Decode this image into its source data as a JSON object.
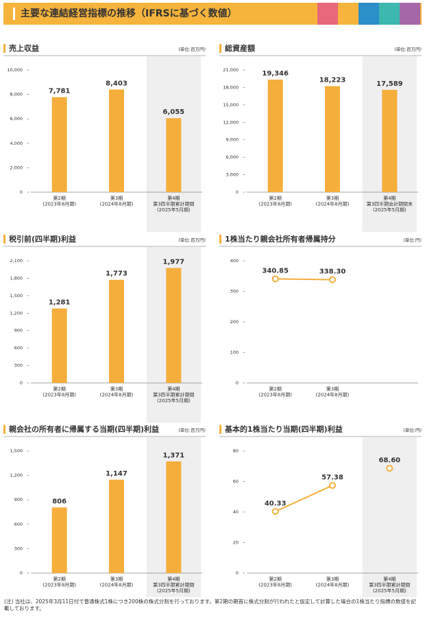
{
  "header": {
    "title": "主要な連結経営指標の推移（IFRSに基づく数値）"
  },
  "chart_data": [
    {
      "type": "bar",
      "title": "売上収益",
      "unit": "(単位:百万円)",
      "color": "#f5ae3c",
      "shaded_category": 2,
      "categories": [
        [
          "第2期",
          "(2023年8月期)"
        ],
        [
          "第3期",
          "(2024年8月期)"
        ],
        [
          "第4期",
          "第3四半期累計期間",
          "(2025年5月期)"
        ]
      ],
      "values": [
        7781,
        8403,
        6055
      ],
      "value_labels": [
        "7,781",
        "8,403",
        "6,055"
      ],
      "ylim": [
        0,
        10000
      ],
      "yticks": [
        0,
        {
          "value": 2000,
          "label": "2,000"
        },
        {
          "value": 4000,
          "label": "4,000"
        },
        {
          "value": 6000,
          "label": "6,000"
        },
        {
          "value": 8000,
          "label": "8,000"
        },
        {
          "value": 10000,
          "label": "10,000"
        }
      ]
    },
    {
      "type": "bar",
      "title": "総資産額",
      "unit": "(単位:百万円)",
      "color": "#f5ae3c",
      "shaded_category": 2,
      "categories": [
        [
          "第2期",
          "(2023年8月期)"
        ],
        [
          "第3期",
          "(2024年8月期)"
        ],
        [
          "第4期",
          "第3四半期会計期間末",
          "(2025年5月期)"
        ]
      ],
      "values": [
        19346,
        18223,
        17589
      ],
      "value_labels": [
        "19,346",
        "18,223",
        "17,589"
      ],
      "ylim": [
        0,
        21000
      ],
      "yticks": [
        0,
        {
          "value": 3000,
          "label": "3,000"
        },
        {
          "value": 6000,
          "label": "6,000"
        },
        {
          "value": 9000,
          "label": "9,000"
        },
        {
          "value": 12000,
          "label": "12,000"
        },
        {
          "value": 15000,
          "label": "15,000"
        },
        {
          "value": 18000,
          "label": "18,000"
        },
        {
          "value": 21000,
          "label": "21,000"
        }
      ]
    },
    {
      "type": "bar",
      "title": "税引前(四半期)利益",
      "unit": "(単位:百万円)",
      "color": "#f5ae3c",
      "shaded_category": 2,
      "categories": [
        [
          "第2期",
          "(2023年8月期)"
        ],
        [
          "第3期",
          "(2024年8月期)"
        ],
        [
          "第4期",
          "第3四半期累計期間",
          "(2025年5月期)"
        ]
      ],
      "values": [
        1281,
        1773,
        1977
      ],
      "value_labels": [
        "1,281",
        "1,773",
        "1,977"
      ],
      "ylim": [
        0,
        2100
      ],
      "yticks": [
        0,
        300,
        600,
        900,
        {
          "value": 1200,
          "label": "1,200"
        },
        {
          "value": 1500,
          "label": "1,500"
        },
        {
          "value": 1800,
          "label": "1,800"
        },
        {
          "value": 2100,
          "label": "2,100"
        }
      ]
    },
    {
      "type": "line",
      "title": "1株当たり親会社所有者帰属持分",
      "unit": "(単位:円)",
      "categories": [
        [
          "第2期",
          "(2023年8月期)"
        ],
        [
          "第3期",
          "(2024年8月期)"
        ]
      ],
      "series": [
        {
          "color": "#f5ae3c",
          "values": [
            340.85,
            338.3
          ],
          "value_labels": [
            "340.85",
            "338.30"
          ]
        }
      ],
      "ylim": [
        0,
        400
      ],
      "yticks": [
        0,
        100,
        200,
        300,
        400
      ]
    },
    {
      "type": "bar",
      "title": "親会社の所有者に帰属する当期(四半期)利益",
      "unit": "(単位:百万円)",
      "color": "#f5ae3c",
      "shaded_category": 2,
      "categories": [
        [
          "第2期",
          "(2023年8月期)"
        ],
        [
          "第3期",
          "(2024年8月期)"
        ],
        [
          "第4期",
          "第3四半期累計期間",
          "(2025年5月期)"
        ]
      ],
      "values": [
        806,
        1147,
        1371
      ],
      "value_labels": [
        "806",
        "1,147",
        "1,371"
      ],
      "ylim": [
        0,
        1500
      ],
      "yticks": [
        0,
        300,
        600,
        900,
        {
          "value": 1200,
          "label": "1,200"
        },
        {
          "value": 1500,
          "label": "1,500"
        }
      ]
    },
    {
      "type": "line",
      "title": "基本的1株当たり当期(四半期)利益",
      "unit": "(単位:円)",
      "shaded_category": 2,
      "categories": [
        [
          "第2期",
          "(2023年8月期)"
        ],
        [
          "第3期",
          "(2024年8月期)"
        ],
        [
          "第4期",
          "第3四半期累計期間",
          "(2025年5月期)"
        ]
      ],
      "series": [
        {
          "color": "#f5ae3c",
          "values": [
            40.33,
            57.38,
            null
          ],
          "value_labels": [
            "40.33",
            "57.38",
            null
          ]
        },
        {
          "color": "#f5ae3c",
          "values": [
            null,
            null,
            68.6
          ],
          "value_labels": [
            null,
            null,
            "68.60"
          ]
        }
      ],
      "ylim": [
        0,
        80
      ],
      "yticks": [
        0,
        20,
        40,
        60,
        80
      ]
    }
  ],
  "note": "(注) 当社は、2025年3月11日付で普通株式1株につき200株の株式分割を行っております。第2期の期首に株式分割が行われたと仮定して計算した場合の1株当たり指標の数値を記載しております。"
}
